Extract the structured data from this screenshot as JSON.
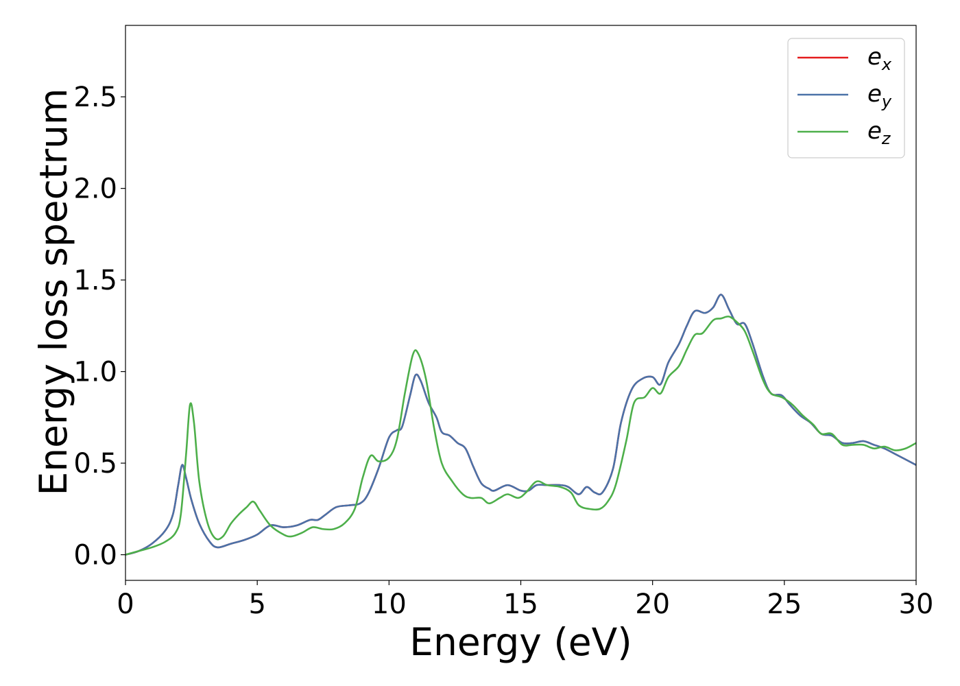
{
  "chart_data": {
    "type": "line",
    "title": "",
    "xlabel": "Energy (eV)",
    "ylabel": "Energy loss spectrum",
    "xlim": [
      0,
      30
    ],
    "ylim": [
      -0.14,
      2.89
    ],
    "xticks": [
      "0",
      "5",
      "10",
      "15",
      "20",
      "25",
      "30"
    ],
    "yticks": [
      "0.0",
      "0.5",
      "1.0",
      "1.5",
      "2.0",
      "2.5"
    ],
    "grid": false,
    "legend_position": "top-right",
    "series": [
      {
        "name": "e",
        "subscript": "x",
        "color": "#e41a1c",
        "points": [
          [
            0,
            0
          ],
          [
            0.5,
            0.02
          ],
          [
            1.0,
            0.06
          ],
          [
            1.5,
            0.13
          ],
          [
            1.8,
            0.22
          ],
          [
            2.0,
            0.38
          ],
          [
            2.15,
            0.49
          ],
          [
            2.3,
            0.42
          ],
          [
            2.5,
            0.3
          ],
          [
            2.8,
            0.17
          ],
          [
            3.2,
            0.07
          ],
          [
            3.5,
            0.04
          ],
          [
            4.0,
            0.06
          ],
          [
            4.5,
            0.08
          ],
          [
            5.0,
            0.11
          ],
          [
            5.5,
            0.16
          ],
          [
            6.0,
            0.15
          ],
          [
            6.5,
            0.16
          ],
          [
            7.0,
            0.19
          ],
          [
            7.3,
            0.19
          ],
          [
            7.6,
            0.22
          ],
          [
            8.0,
            0.26
          ],
          [
            8.5,
            0.27
          ],
          [
            8.9,
            0.28
          ],
          [
            9.2,
            0.33
          ],
          [
            9.6,
            0.47
          ],
          [
            10.0,
            0.64
          ],
          [
            10.3,
            0.68
          ],
          [
            10.5,
            0.7
          ],
          [
            10.8,
            0.87
          ],
          [
            11.0,
            0.98
          ],
          [
            11.2,
            0.95
          ],
          [
            11.5,
            0.83
          ],
          [
            11.8,
            0.75
          ],
          [
            12.0,
            0.67
          ],
          [
            12.3,
            0.65
          ],
          [
            12.6,
            0.61
          ],
          [
            12.9,
            0.58
          ],
          [
            13.2,
            0.48
          ],
          [
            13.5,
            0.39
          ],
          [
            13.8,
            0.36
          ],
          [
            14.0,
            0.35
          ],
          [
            14.5,
            0.38
          ],
          [
            15.0,
            0.35
          ],
          [
            15.3,
            0.35
          ],
          [
            15.6,
            0.38
          ],
          [
            16.0,
            0.38
          ],
          [
            16.5,
            0.38
          ],
          [
            16.8,
            0.37
          ],
          [
            17.2,
            0.33
          ],
          [
            17.5,
            0.37
          ],
          [
            17.8,
            0.34
          ],
          [
            18.1,
            0.34
          ],
          [
            18.5,
            0.47
          ],
          [
            18.8,
            0.72
          ],
          [
            19.2,
            0.9
          ],
          [
            19.6,
            0.96
          ],
          [
            20.0,
            0.97
          ],
          [
            20.3,
            0.93
          ],
          [
            20.6,
            1.05
          ],
          [
            21.0,
            1.15
          ],
          [
            21.3,
            1.25
          ],
          [
            21.6,
            1.33
          ],
          [
            22.0,
            1.32
          ],
          [
            22.3,
            1.35
          ],
          [
            22.6,
            1.42
          ],
          [
            22.9,
            1.34
          ],
          [
            23.2,
            1.26
          ],
          [
            23.5,
            1.26
          ],
          [
            23.8,
            1.15
          ],
          [
            24.2,
            0.97
          ],
          [
            24.5,
            0.88
          ],
          [
            24.9,
            0.87
          ],
          [
            25.2,
            0.82
          ],
          [
            25.6,
            0.76
          ],
          [
            26.0,
            0.72
          ],
          [
            26.4,
            0.66
          ],
          [
            26.8,
            0.65
          ],
          [
            27.2,
            0.61
          ],
          [
            27.6,
            0.61
          ],
          [
            28.0,
            0.62
          ],
          [
            28.4,
            0.6
          ],
          [
            28.8,
            0.58
          ],
          [
            29.2,
            0.55
          ],
          [
            29.6,
            0.52
          ],
          [
            30.0,
            0.49
          ]
        ]
      },
      {
        "name": "e",
        "subscript": "y",
        "color": "#4a72a8",
        "points": [
          [
            0,
            0
          ],
          [
            0.5,
            0.02
          ],
          [
            1.0,
            0.06
          ],
          [
            1.5,
            0.13
          ],
          [
            1.8,
            0.22
          ],
          [
            2.0,
            0.38
          ],
          [
            2.15,
            0.49
          ],
          [
            2.3,
            0.42
          ],
          [
            2.5,
            0.3
          ],
          [
            2.8,
            0.17
          ],
          [
            3.2,
            0.07
          ],
          [
            3.5,
            0.04
          ],
          [
            4.0,
            0.06
          ],
          [
            4.5,
            0.08
          ],
          [
            5.0,
            0.11
          ],
          [
            5.5,
            0.16
          ],
          [
            6.0,
            0.15
          ],
          [
            6.5,
            0.16
          ],
          [
            7.0,
            0.19
          ],
          [
            7.3,
            0.19
          ],
          [
            7.6,
            0.22
          ],
          [
            8.0,
            0.26
          ],
          [
            8.5,
            0.27
          ],
          [
            8.9,
            0.28
          ],
          [
            9.2,
            0.33
          ],
          [
            9.6,
            0.47
          ],
          [
            10.0,
            0.64
          ],
          [
            10.3,
            0.68
          ],
          [
            10.5,
            0.7
          ],
          [
            10.8,
            0.87
          ],
          [
            11.0,
            0.98
          ],
          [
            11.2,
            0.95
          ],
          [
            11.5,
            0.83
          ],
          [
            11.8,
            0.75
          ],
          [
            12.0,
            0.67
          ],
          [
            12.3,
            0.65
          ],
          [
            12.6,
            0.61
          ],
          [
            12.9,
            0.58
          ],
          [
            13.2,
            0.48
          ],
          [
            13.5,
            0.39
          ],
          [
            13.8,
            0.36
          ],
          [
            14.0,
            0.35
          ],
          [
            14.5,
            0.38
          ],
          [
            15.0,
            0.35
          ],
          [
            15.3,
            0.35
          ],
          [
            15.6,
            0.38
          ],
          [
            16.0,
            0.38
          ],
          [
            16.5,
            0.38
          ],
          [
            16.8,
            0.37
          ],
          [
            17.2,
            0.33
          ],
          [
            17.5,
            0.37
          ],
          [
            17.8,
            0.34
          ],
          [
            18.1,
            0.34
          ],
          [
            18.5,
            0.47
          ],
          [
            18.8,
            0.72
          ],
          [
            19.2,
            0.9
          ],
          [
            19.6,
            0.96
          ],
          [
            20.0,
            0.97
          ],
          [
            20.3,
            0.93
          ],
          [
            20.6,
            1.05
          ],
          [
            21.0,
            1.15
          ],
          [
            21.3,
            1.25
          ],
          [
            21.6,
            1.33
          ],
          [
            22.0,
            1.32
          ],
          [
            22.3,
            1.35
          ],
          [
            22.6,
            1.42
          ],
          [
            22.9,
            1.34
          ],
          [
            23.2,
            1.26
          ],
          [
            23.5,
            1.26
          ],
          [
            23.8,
            1.15
          ],
          [
            24.2,
            0.97
          ],
          [
            24.5,
            0.88
          ],
          [
            24.9,
            0.87
          ],
          [
            25.2,
            0.82
          ],
          [
            25.6,
            0.76
          ],
          [
            26.0,
            0.72
          ],
          [
            26.4,
            0.66
          ],
          [
            26.8,
            0.65
          ],
          [
            27.2,
            0.61
          ],
          [
            27.6,
            0.61
          ],
          [
            28.0,
            0.62
          ],
          [
            28.4,
            0.6
          ],
          [
            28.8,
            0.58
          ],
          [
            29.2,
            0.55
          ],
          [
            29.6,
            0.52
          ],
          [
            30.0,
            0.49
          ]
        ]
      },
      {
        "name": "e",
        "subscript": "z",
        "color": "#4daf4a",
        "points": [
          [
            0,
            0
          ],
          [
            0.5,
            0.02
          ],
          [
            1.0,
            0.04
          ],
          [
            1.5,
            0.07
          ],
          [
            1.9,
            0.12
          ],
          [
            2.1,
            0.22
          ],
          [
            2.3,
            0.55
          ],
          [
            2.45,
            0.82
          ],
          [
            2.6,
            0.72
          ],
          [
            2.8,
            0.4
          ],
          [
            3.1,
            0.18
          ],
          [
            3.4,
            0.09
          ],
          [
            3.7,
            0.1
          ],
          [
            4.0,
            0.17
          ],
          [
            4.3,
            0.22
          ],
          [
            4.6,
            0.26
          ],
          [
            4.85,
            0.29
          ],
          [
            5.1,
            0.24
          ],
          [
            5.5,
            0.16
          ],
          [
            6.0,
            0.11
          ],
          [
            6.3,
            0.1
          ],
          [
            6.7,
            0.12
          ],
          [
            7.1,
            0.15
          ],
          [
            7.5,
            0.14
          ],
          [
            7.9,
            0.14
          ],
          [
            8.3,
            0.17
          ],
          [
            8.7,
            0.25
          ],
          [
            9.0,
            0.42
          ],
          [
            9.3,
            0.54
          ],
          [
            9.6,
            0.51
          ],
          [
            10.0,
            0.53
          ],
          [
            10.3,
            0.63
          ],
          [
            10.6,
            0.88
          ],
          [
            10.9,
            1.09
          ],
          [
            11.1,
            1.1
          ],
          [
            11.4,
            0.96
          ],
          [
            11.7,
            0.7
          ],
          [
            12.0,
            0.5
          ],
          [
            12.4,
            0.4
          ],
          [
            12.8,
            0.33
          ],
          [
            13.1,
            0.31
          ],
          [
            13.5,
            0.31
          ],
          [
            13.8,
            0.28
          ],
          [
            14.2,
            0.31
          ],
          [
            14.5,
            0.33
          ],
          [
            14.9,
            0.31
          ],
          [
            15.2,
            0.34
          ],
          [
            15.6,
            0.4
          ],
          [
            16.0,
            0.38
          ],
          [
            16.5,
            0.37
          ],
          [
            16.9,
            0.34
          ],
          [
            17.2,
            0.27
          ],
          [
            17.6,
            0.25
          ],
          [
            18.0,
            0.25
          ],
          [
            18.3,
            0.29
          ],
          [
            18.6,
            0.38
          ],
          [
            19.0,
            0.62
          ],
          [
            19.3,
            0.83
          ],
          [
            19.7,
            0.86
          ],
          [
            20.0,
            0.91
          ],
          [
            20.3,
            0.88
          ],
          [
            20.6,
            0.97
          ],
          [
            21.0,
            1.03
          ],
          [
            21.3,
            1.12
          ],
          [
            21.6,
            1.2
          ],
          [
            21.9,
            1.21
          ],
          [
            22.3,
            1.28
          ],
          [
            22.6,
            1.29
          ],
          [
            22.9,
            1.3
          ],
          [
            23.2,
            1.27
          ],
          [
            23.5,
            1.22
          ],
          [
            23.8,
            1.11
          ],
          [
            24.2,
            0.95
          ],
          [
            24.5,
            0.88
          ],
          [
            24.9,
            0.86
          ],
          [
            25.3,
            0.82
          ],
          [
            25.7,
            0.76
          ],
          [
            26.1,
            0.71
          ],
          [
            26.4,
            0.66
          ],
          [
            26.8,
            0.66
          ],
          [
            27.2,
            0.6
          ],
          [
            27.6,
            0.6
          ],
          [
            28.0,
            0.6
          ],
          [
            28.4,
            0.58
          ],
          [
            28.8,
            0.59
          ],
          [
            29.2,
            0.57
          ],
          [
            29.6,
            0.58
          ],
          [
            30.0,
            0.61
          ]
        ]
      }
    ]
  }
}
